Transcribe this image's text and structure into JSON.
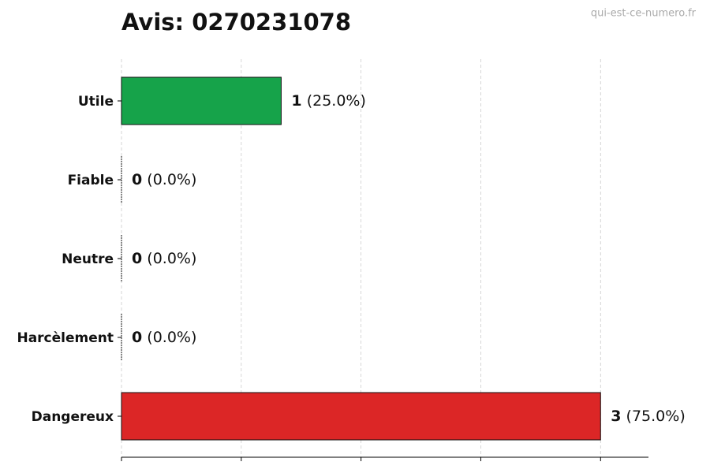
{
  "chart_data": {
    "type": "barh",
    "title": "Avis: 0270231078",
    "watermark": "qui-est-ce-numero.fr",
    "categories": [
      "Utile",
      "Fiable",
      "Neutre",
      "Harcèlement",
      "Dangereux"
    ],
    "values": [
      1,
      0,
      0,
      0,
      3
    ],
    "percent_labels": [
      "(25.0%)",
      "(0.0%)",
      "(0.0%)",
      "(0.0%)",
      "(75.0%)"
    ],
    "colors": [
      "#16a34a",
      "#22c55e",
      "#9ca3af",
      "#f97316",
      "#dc2626"
    ],
    "xlim": [
      0,
      3.3
    ],
    "xticks": [
      0,
      0.75,
      1.5,
      2.25,
      3
    ],
    "grid": true
  }
}
